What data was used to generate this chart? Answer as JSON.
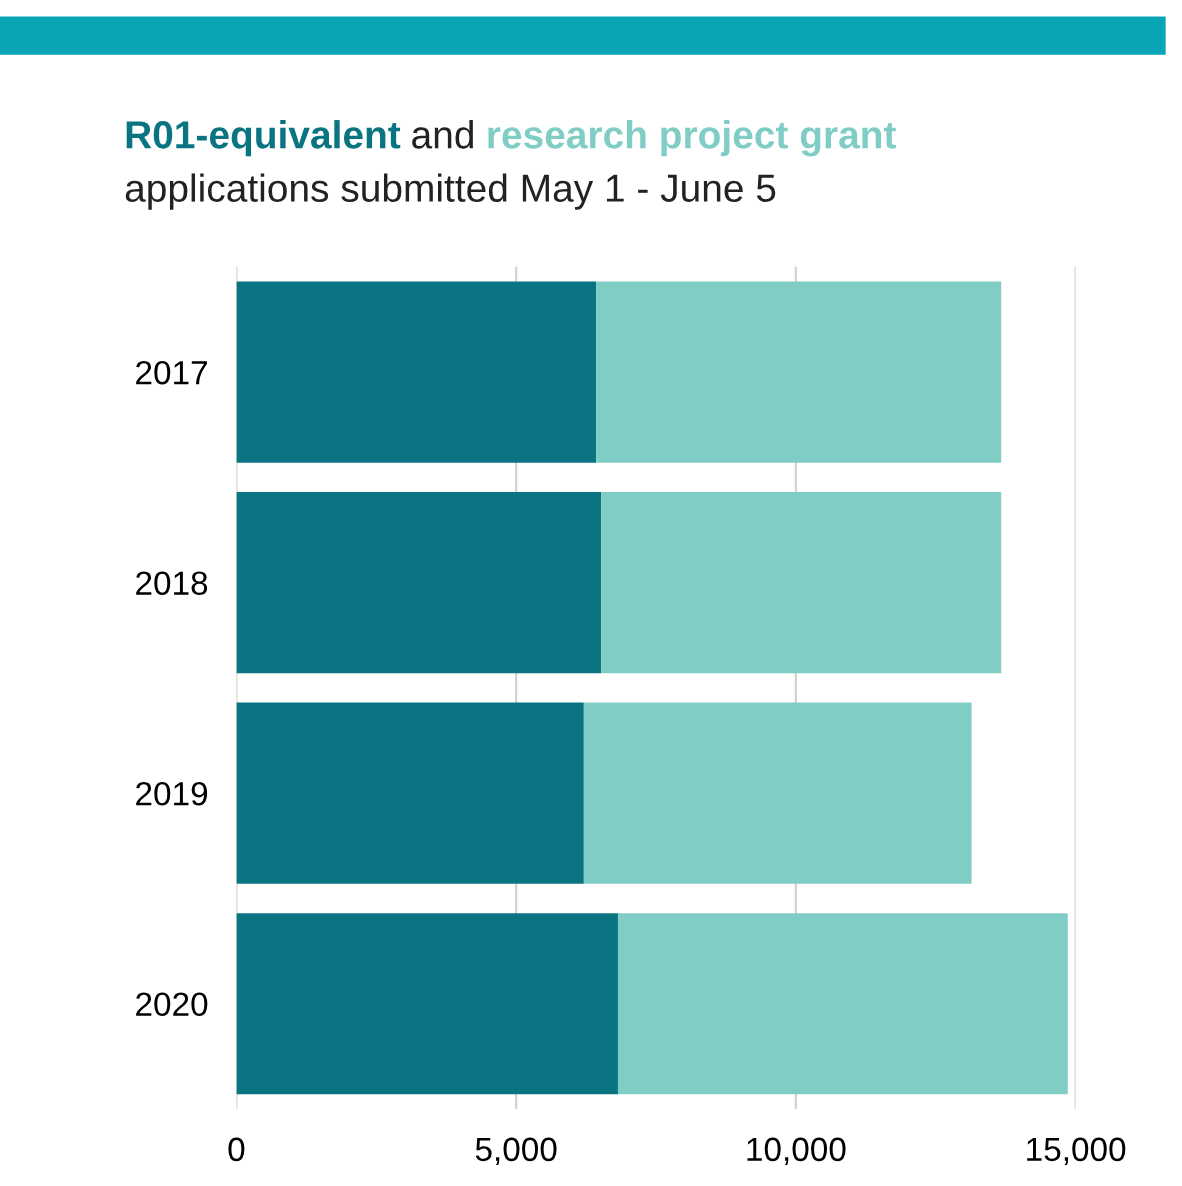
{
  "chart_data": {
    "type": "bar",
    "orientation": "horizontal",
    "stacked": true,
    "title": "and",
    "subtitle": "applications submitted May 1 - June 5",
    "categories": [
      "2017",
      "2018",
      "2019",
      "2020"
    ],
    "series": [
      {
        "name": "R01-equivalent",
        "color": "#0a7482",
        "values": [
          6430,
          6520,
          6210,
          6820
        ]
      },
      {
        "name": "research project grant",
        "color": "#80cdc6",
        "values": [
          7240,
          7150,
          6930,
          8040
        ]
      }
    ],
    "xlim": [
      0,
      15000
    ],
    "xticks": [
      {
        "value": 0,
        "label": "0"
      },
      {
        "value": 5000,
        "label": "5,000"
      },
      {
        "value": 10000,
        "label": "10,000"
      },
      {
        "value": 15000,
        "label": "15,000"
      }
    ],
    "grid": "x",
    "legend": false
  }
}
